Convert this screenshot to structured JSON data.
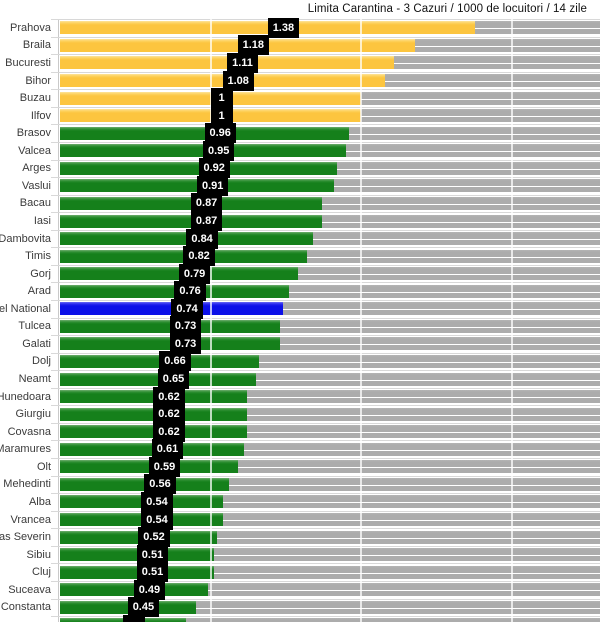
{
  "title": "Limita Carantina - 3 Cazuri / 1000 de locuitori / 14 zile",
  "chart_data": {
    "type": "bar",
    "orientation": "horizontal",
    "title": "Limita Carantina - 3 Cazuri / 1000 de locuitori / 14 zile",
    "xlabel": "",
    "ylabel": "",
    "axis": {
      "x_min": 0,
      "x_visible_max": 1.79,
      "gridlines_at": [
        0.5,
        1.0,
        1.5
      ],
      "grid": "on",
      "background_track": "full-width gray remainder bars"
    },
    "colors": {
      "above_limit": "#FCC53F",
      "below_limit": "#15801B",
      "national": "#0C10E8",
      "track": "#ACACAC",
      "value_box_bg": "#000000",
      "value_box_text": "#ffffff"
    },
    "rows": [
      {
        "name": "Prahova",
        "value": 1.38,
        "display": "1.38",
        "color": "above_limit"
      },
      {
        "name": "Braila",
        "value": 1.18,
        "display": "1.18",
        "color": "above_limit"
      },
      {
        "name": "Bucuresti",
        "value": 1.11,
        "display": "1.11",
        "color": "above_limit"
      },
      {
        "name": "Bihor",
        "value": 1.08,
        "display": "1.08",
        "color": "above_limit"
      },
      {
        "name": "Buzau",
        "value": 1.0,
        "display": "1",
        "color": "above_limit"
      },
      {
        "name": "Ilfov",
        "value": 1.0,
        "display": "1",
        "color": "above_limit"
      },
      {
        "name": "Brasov",
        "value": 0.96,
        "display": "0.96",
        "color": "below_limit"
      },
      {
        "name": "Valcea",
        "value": 0.95,
        "display": "0.95",
        "color": "below_limit"
      },
      {
        "name": "Arges",
        "value": 0.92,
        "display": "0.92",
        "color": "below_limit"
      },
      {
        "name": "Vaslui",
        "value": 0.91,
        "display": "0.91",
        "color": "below_limit"
      },
      {
        "name": "Bacau",
        "value": 0.87,
        "display": "0.87",
        "color": "below_limit"
      },
      {
        "name": "Iasi",
        "value": 0.87,
        "display": "0.87",
        "color": "below_limit"
      },
      {
        "name": "Dambovita",
        "value": 0.84,
        "display": "0.84",
        "color": "below_limit"
      },
      {
        "name": "Timis",
        "value": 0.82,
        "display": "0.82",
        "color": "below_limit"
      },
      {
        "name": "Gorj",
        "value": 0.79,
        "display": "0.79",
        "color": "below_limit"
      },
      {
        "name": "Arad",
        "value": 0.76,
        "display": "0.76",
        "color": "below_limit"
      },
      {
        "name": "Nivel National",
        "value": 0.74,
        "display": "0.74",
        "color": "national"
      },
      {
        "name": "Tulcea",
        "value": 0.73,
        "display": "0.73",
        "color": "below_limit"
      },
      {
        "name": "Galati",
        "value": 0.73,
        "display": "0.73",
        "color": "below_limit"
      },
      {
        "name": "Dolj",
        "value": 0.66,
        "display": "0.66",
        "color": "below_limit"
      },
      {
        "name": "Neamt",
        "value": 0.65,
        "display": "0.65",
        "color": "below_limit"
      },
      {
        "name": "Hunedoara",
        "value": 0.62,
        "display": "0.62",
        "color": "below_limit"
      },
      {
        "name": "Giurgiu",
        "value": 0.62,
        "display": "0.62",
        "color": "below_limit"
      },
      {
        "name": "Covasna",
        "value": 0.62,
        "display": "0.62",
        "color": "below_limit"
      },
      {
        "name": "Maramures",
        "value": 0.61,
        "display": "0.61",
        "color": "below_limit"
      },
      {
        "name": "Olt",
        "value": 0.59,
        "display": "0.59",
        "color": "below_limit"
      },
      {
        "name": "Mehedinti",
        "value": 0.56,
        "display": "0.56",
        "color": "below_limit"
      },
      {
        "name": "Alba",
        "value": 0.54,
        "display": "0.54",
        "color": "below_limit"
      },
      {
        "name": "Vrancea",
        "value": 0.54,
        "display": "0.54",
        "color": "below_limit"
      },
      {
        "name": "Caras Severin",
        "value": 0.52,
        "display": "0.52",
        "color": "below_limit"
      },
      {
        "name": "Sibiu",
        "value": 0.51,
        "display": "0.51",
        "color": "below_limit"
      },
      {
        "name": "Cluj",
        "value": 0.51,
        "display": "0.51",
        "color": "below_limit"
      },
      {
        "name": "Suceava",
        "value": 0.49,
        "display": "0.49",
        "color": "below_limit"
      },
      {
        "name": "Constanta",
        "value": 0.45,
        "display": "0.45",
        "color": "below_limit"
      },
      {
        "name": "",
        "value": 0.42,
        "display": "",
        "color": "below_limit"
      }
    ]
  }
}
